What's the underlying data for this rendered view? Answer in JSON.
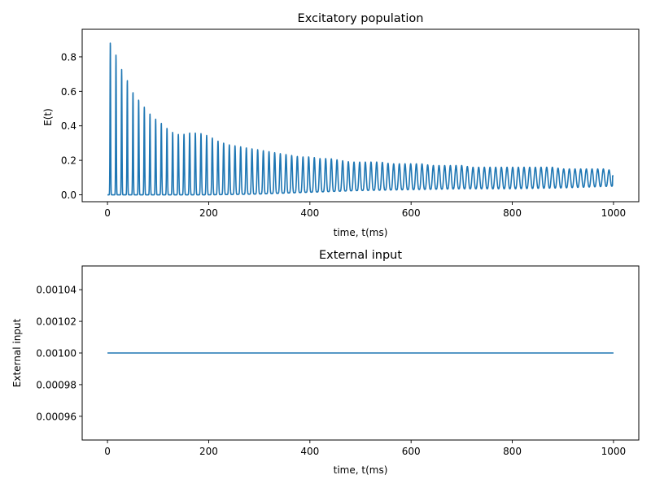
{
  "chart_data": [
    {
      "type": "line",
      "title": "Excitatory population",
      "xlabel": "time, t(ms)",
      "ylabel": "E(t)",
      "xlim": [
        -50,
        1050
      ],
      "ylim": [
        -0.04,
        0.96
      ],
      "xticks": [
        0,
        200,
        400,
        600,
        800,
        1000
      ],
      "yticks": [
        0.0,
        0.2,
        0.4,
        0.6,
        0.8
      ],
      "xtick_labels": [
        "0",
        "200",
        "400",
        "600",
        "800",
        "1000"
      ],
      "ytick_labels": [
        "0.0",
        "0.2",
        "0.4",
        "0.6",
        "0.8"
      ],
      "color": "#1f77b4",
      "series": [
        {
          "name": "E(t)",
          "oscillation": {
            "t_start": 0,
            "t_end": 1000,
            "period_ms": 11.2,
            "peak_envelope": {
              "t": [
                0,
                10,
                20,
                30,
                40,
                50,
                60,
                70,
                80,
                90,
                100,
                110,
                120,
                130,
                140,
                150,
                160,
                170,
                180,
                190,
                200,
                220,
                240,
                260,
                280,
                300,
                320,
                340,
                360,
                380,
                400,
                420,
                440,
                460,
                480,
                500,
                520,
                540,
                560,
                580,
                600,
                620,
                640,
                660,
                680,
                700,
                720,
                740,
                760,
                780,
                800,
                820,
                840,
                860,
                880,
                900,
                920,
                940,
                960,
                980,
                1000
              ],
              "E": [
                0.93,
                0.86,
                0.79,
                0.71,
                0.66,
                0.6,
                0.56,
                0.52,
                0.48,
                0.45,
                0.43,
                0.41,
                0.38,
                0.36,
                0.35,
                0.35,
                0.36,
                0.36,
                0.36,
                0.35,
                0.34,
                0.31,
                0.29,
                0.28,
                0.27,
                0.26,
                0.25,
                0.24,
                0.23,
                0.22,
                0.22,
                0.21,
                0.21,
                0.2,
                0.19,
                0.19,
                0.19,
                0.19,
                0.18,
                0.18,
                0.18,
                0.18,
                0.17,
                0.17,
                0.17,
                0.17,
                0.16,
                0.16,
                0.16,
                0.16,
                0.16,
                0.16,
                0.16,
                0.16,
                0.16,
                0.15,
                0.15,
                0.15,
                0.15,
                0.15,
                0.14
              ]
            },
            "trough_envelope": {
              "t": [
                0,
                100,
                200,
                300,
                350,
                400,
                500,
                600,
                700,
                800,
                900,
                1000
              ],
              "E": [
                0.0,
                0.0,
                0.0,
                0.005,
                0.01,
                0.015,
                0.025,
                0.03,
                0.035,
                0.035,
                0.04,
                0.05
              ]
            },
            "final_value": 0.11
          }
        }
      ]
    },
    {
      "type": "line",
      "title": "External input",
      "xlabel": "time, t(ms)",
      "ylabel": "External input",
      "xlim": [
        -50,
        1050
      ],
      "ylim": [
        0.000945,
        0.001055
      ],
      "xticks": [
        0,
        200,
        400,
        600,
        800,
        1000
      ],
      "yticks": [
        0.00096,
        0.00098,
        0.001,
        0.00102,
        0.00104
      ],
      "xtick_labels": [
        "0",
        "200",
        "400",
        "600",
        "800",
        "1000"
      ],
      "ytick_labels": [
        "0.00096",
        "0.00098",
        "0.00100",
        "0.00102",
        "0.00104"
      ],
      "color": "#1f77b4",
      "series": [
        {
          "name": "External input",
          "x": [
            0,
            1000
          ],
          "y": [
            0.001,
            0.001
          ]
        }
      ]
    }
  ]
}
